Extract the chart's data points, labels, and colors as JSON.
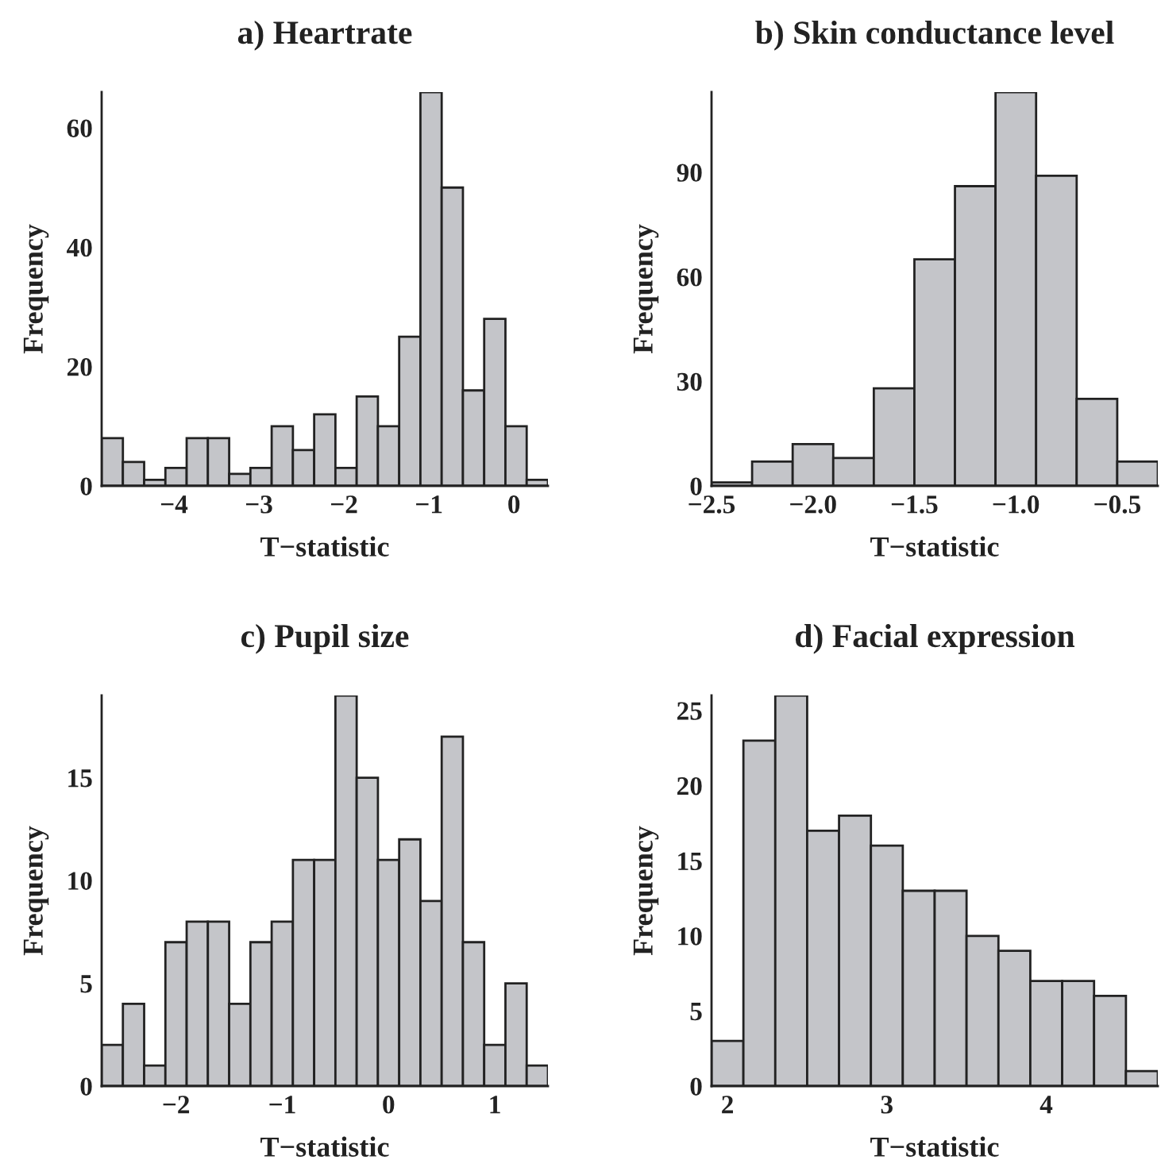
{
  "chart_data": [
    {
      "type": "histogram",
      "title": "a) Heartrate",
      "xlabel": "T−statistic",
      "ylabel": "Frequency",
      "color": "#c4c5c9",
      "bins": [
        -4.85,
        -4.6,
        -4.35,
        -4.1,
        -3.85,
        -3.6,
        -3.35,
        -3.1,
        -2.85,
        -2.6,
        -2.35,
        -2.1,
        -1.85,
        -1.6,
        -1.35,
        -1.1,
        -0.85,
        -0.6,
        -0.35,
        -0.1,
        0.15,
        0.4
      ],
      "values": [
        8,
        4,
        1,
        3,
        8,
        8,
        2,
        3,
        10,
        6,
        12,
        3,
        15,
        10,
        25,
        66,
        50,
        16,
        28,
        10,
        1
      ],
      "xlim": [
        -4.85,
        0.4
      ],
      "xticks": [
        {
          "value": -4,
          "label": "−4"
        },
        {
          "value": -3,
          "label": "−3"
        },
        {
          "value": -2,
          "label": "−2"
        },
        {
          "value": -1,
          "label": "−1"
        },
        0
      ],
      "ylim": [
        0,
        66
      ],
      "yticks": [
        0,
        20,
        40,
        60
      ],
      "grid": false,
      "legend": false
    },
    {
      "type": "histogram",
      "title": "b) Skin conductance level",
      "xlabel": "T−statistic",
      "ylabel": "Frequency",
      "color": "#c4c5c9",
      "bins": [
        -2.5,
        -2.3,
        -2.1,
        -1.9,
        -1.7,
        -1.5,
        -1.3,
        -1.1,
        -0.9,
        -0.7,
        -0.5,
        -0.3
      ],
      "values": [
        1,
        7,
        12,
        8,
        28,
        65,
        86,
        113,
        89,
        25,
        7
      ],
      "xlim": [
        -2.5,
        -0.3
      ],
      "xticks": [
        {
          "value": -2.5,
          "label": "−2.5"
        },
        {
          "value": -2.0,
          "label": "−2.0"
        },
        {
          "value": -1.5,
          "label": "−1.5"
        },
        {
          "value": -1.0,
          "label": "−1.0"
        },
        {
          "value": -0.5,
          "label": "−0.5"
        }
      ],
      "ylim": [
        0,
        113
      ],
      "yticks": [
        0,
        30,
        60,
        90
      ],
      "grid": false,
      "legend": false
    },
    {
      "type": "histogram",
      "title": "c) Pupil size",
      "xlabel": "T−statistic",
      "ylabel": "Frequency",
      "color": "#c4c5c9",
      "bins": [
        -2.7,
        -2.5,
        -2.3,
        -2.1,
        -1.9,
        -1.7,
        -1.5,
        -1.3,
        -1.1,
        -0.9,
        -0.7,
        -0.5,
        -0.3,
        -0.1,
        0.1,
        0.3,
        0.5,
        0.7,
        0.9,
        1.1,
        1.3,
        1.5
      ],
      "values": [
        2,
        4,
        1,
        7,
        8,
        8,
        4,
        7,
        8,
        11,
        11,
        19,
        15,
        11,
        12,
        9,
        17,
        7,
        2,
        5,
        1
      ],
      "xlim": [
        -2.7,
        1.5
      ],
      "xticks": [
        {
          "value": -2,
          "label": "−2"
        },
        {
          "value": -1,
          "label": "−1"
        },
        0,
        1
      ],
      "ylim": [
        0,
        19
      ],
      "yticks": [
        0,
        5,
        10,
        15
      ],
      "grid": false,
      "legend": false
    },
    {
      "type": "histogram",
      "title": "d) Facial expression",
      "xlabel": "T−statistic",
      "ylabel": "Frequency",
      "color": "#c4c5c9",
      "bins": [
        1.9,
        2.1,
        2.3,
        2.5,
        2.7,
        2.9,
        3.1,
        3.3,
        3.5,
        3.7,
        3.9,
        4.1,
        4.3,
        4.5,
        4.7
      ],
      "values": [
        3,
        23,
        26,
        17,
        18,
        16,
        13,
        13,
        10,
        9,
        7,
        7,
        6,
        1
      ],
      "xlim": [
        1.9,
        4.7
      ],
      "xticks": [
        2,
        3,
        4
      ],
      "ylim": [
        0,
        26
      ],
      "yticks": [
        0,
        5,
        10,
        15,
        20,
        25
      ],
      "grid": false,
      "legend": false
    }
  ]
}
